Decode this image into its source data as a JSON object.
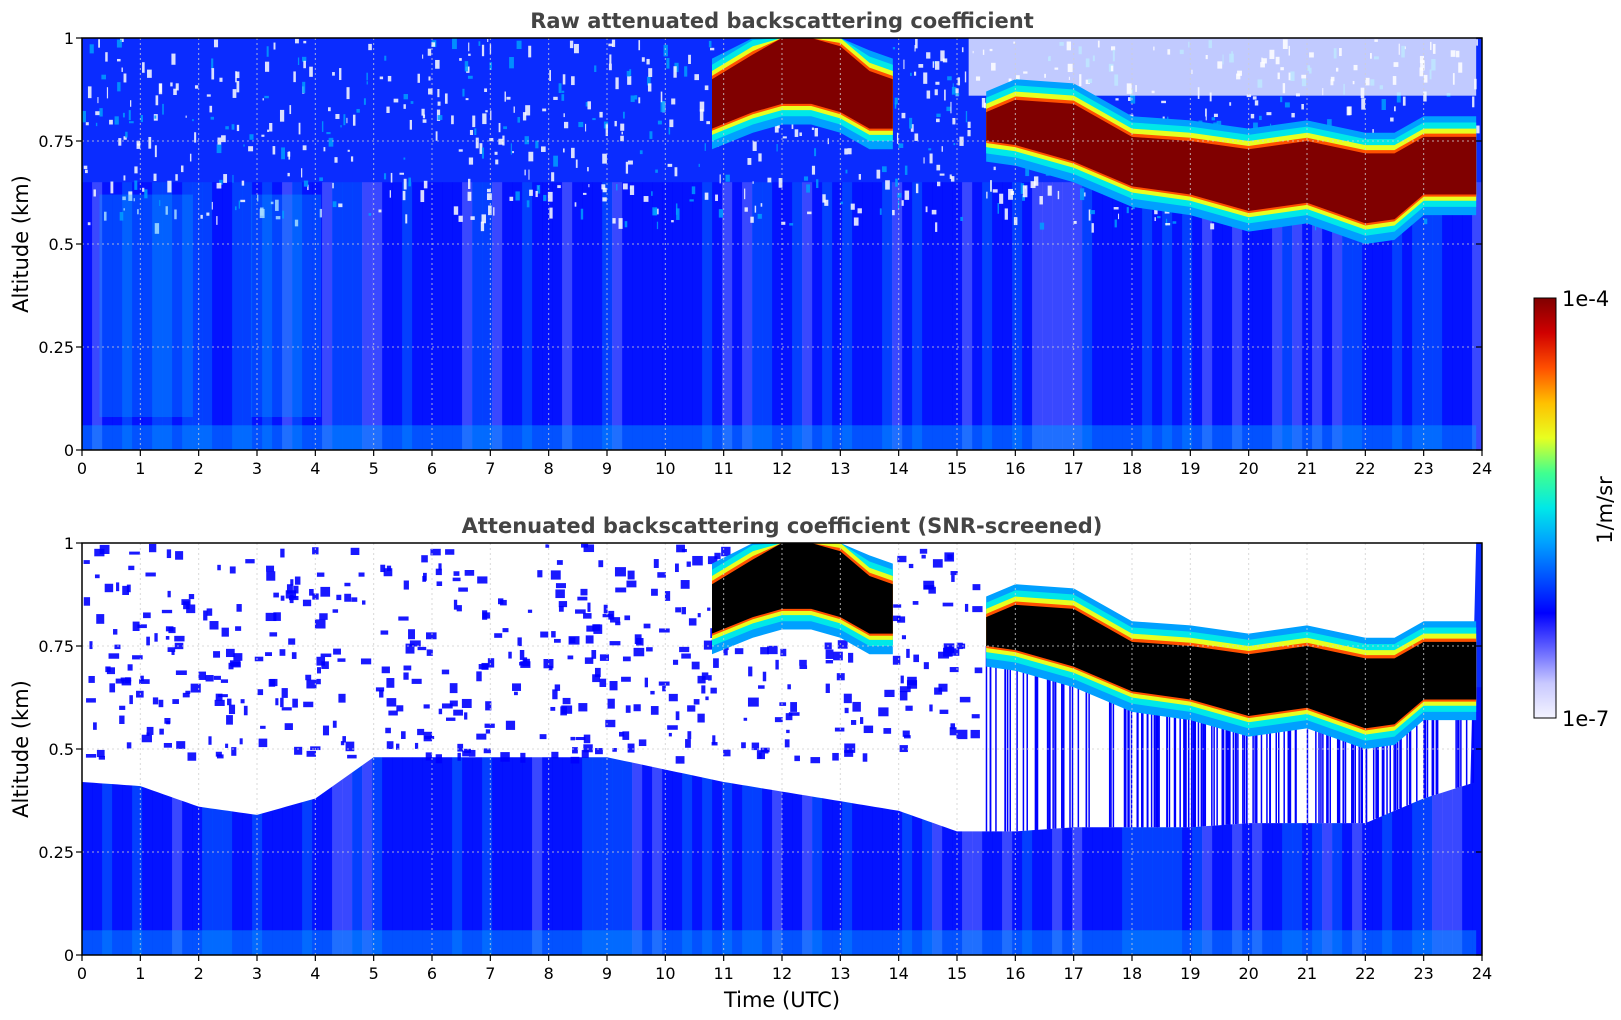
{
  "colors": {
    "colormap": [
      "#f4f4ff",
      "#c8c8ff",
      "#6060ff",
      "#0000ff",
      "#0050ff",
      "#00a0ff",
      "#00e8e8",
      "#40ff90",
      "#e8ff20",
      "#ffc000",
      "#ff5000",
      "#d00000",
      "#800000"
    ],
    "saturated_screened": "#000000",
    "grid": "#d0d0d0"
  },
  "chart_data": [
    {
      "type": "heatmap",
      "title": "Raw attenuated backscattering coefficient",
      "xlabel": "",
      "ylabel": "Altitude (km)",
      "xlim": [
        0,
        24
      ],
      "ylim": [
        0,
        1
      ],
      "x_ticks": [
        "0",
        "1",
        "2",
        "3",
        "4",
        "5",
        "6",
        "7",
        "8",
        "9",
        "10",
        "11",
        "12",
        "13",
        "14",
        "15",
        "16",
        "17",
        "18",
        "19",
        "20",
        "21",
        "22",
        "23",
        "24"
      ],
      "y_ticks": [
        "0",
        "0.25",
        "0.5",
        "0.75",
        "1"
      ],
      "grid": true,
      "cloud_layer": {
        "segment_1": {
          "time_range": [
            10.8,
            13.9
          ],
          "time": [
            10.8,
            11.5,
            12.0,
            12.5,
            13.0,
            13.5,
            13.9
          ],
          "base_km": [
            0.78,
            0.82,
            0.84,
            0.84,
            0.82,
            0.78,
            0.78
          ],
          "top_km": [
            0.9,
            0.96,
            1.0,
            1.0,
            0.98,
            0.92,
            0.9
          ]
        },
        "segment_2": {
          "time_range": [
            15.5,
            23.9
          ],
          "time": [
            15.5,
            16,
            17,
            17.5,
            18,
            19,
            20,
            21,
            22,
            22.5,
            23,
            23.9
          ],
          "base_km": [
            0.75,
            0.74,
            0.7,
            0.67,
            0.64,
            0.62,
            0.58,
            0.6,
            0.55,
            0.56,
            0.62,
            0.62
          ],
          "top_km": [
            0.82,
            0.85,
            0.84,
            0.8,
            0.76,
            0.75,
            0.73,
            0.75,
            0.72,
            0.72,
            0.76,
            0.76
          ]
        }
      },
      "colorbar": {
        "min": "1e-7",
        "max": "1e-4",
        "label": "1/m/sr",
        "scale": "log"
      }
    },
    {
      "type": "heatmap",
      "title": "Attenuated backscattering coefficient (SNR-screened)",
      "xlabel": "Time (UTC)",
      "ylabel": "Altitude (km)",
      "xlim": [
        0,
        24
      ],
      "ylim": [
        0,
        1
      ],
      "x_ticks": [
        "0",
        "1",
        "2",
        "3",
        "4",
        "5",
        "6",
        "7",
        "8",
        "9",
        "10",
        "11",
        "12",
        "13",
        "14",
        "15",
        "16",
        "17",
        "18",
        "19",
        "20",
        "21",
        "22",
        "23",
        "24"
      ],
      "y_ticks": [
        "0",
        "0.25",
        "0.5",
        "0.75",
        "1"
      ],
      "grid": true,
      "screening_limit": {
        "time": [
          0,
          1,
          2,
          3,
          4,
          5,
          9,
          10,
          11,
          14,
          15,
          16,
          17,
          18,
          19,
          20,
          21,
          22,
          23,
          23.9
        ],
        "altitude_km": [
          0.42,
          0.41,
          0.36,
          0.34,
          0.38,
          0.48,
          0.48,
          0.45,
          0.42,
          0.35,
          0.3,
          0.3,
          0.31,
          0.31,
          0.31,
          0.32,
          0.32,
          0.32,
          0.38,
          0.42
        ]
      },
      "colorbar": {
        "min": "1e-7",
        "max": "1e-4",
        "label": "1/m/sr",
        "scale": "log"
      }
    }
  ],
  "colorbar": {
    "max_label": "1e-4",
    "min_label": "1e-7",
    "unit_label": "1/m/sr"
  }
}
